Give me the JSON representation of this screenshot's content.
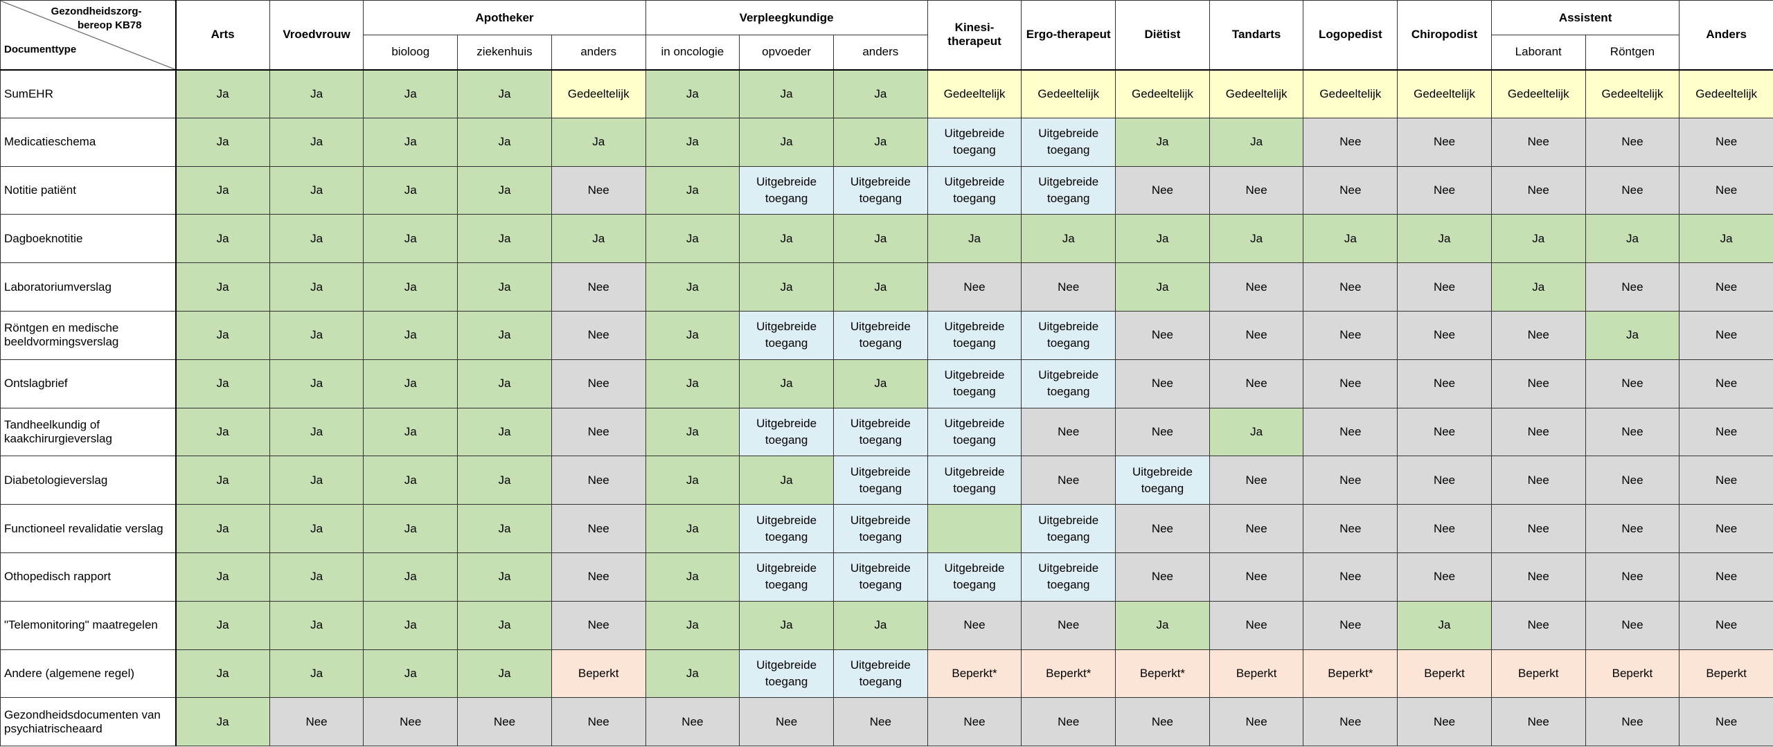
{
  "table": {
    "corner_top": "Gezondheidszorg-\nbereop KB78",
    "corner_bottom": "Documenttype",
    "columns": [
      {
        "label": "Arts"
      },
      {
        "label": "Vroedvrouw"
      },
      {
        "label": "Apotheker",
        "sub": [
          "bioloog",
          "ziekenhuis",
          "anders"
        ]
      },
      {
        "label": "Verpleegkundige",
        "sub": [
          "in oncologie",
          "opvoeder",
          "anders"
        ]
      },
      {
        "label": "Kinesi-\ntherapeut"
      },
      {
        "label": "Ergo-therapeut"
      },
      {
        "label": "Diëtist"
      },
      {
        "label": "Tandarts"
      },
      {
        "label": "Logopedist"
      },
      {
        "label": "Chiropodist"
      },
      {
        "label": "Assistent",
        "sub": [
          "Laborant",
          "Röntgen"
        ]
      },
      {
        "label": "Anders"
      }
    ],
    "fill_colors": {
      "Ja": "#c6e0b4",
      "Nee": "#d9d9d9",
      "Gedeeltelijk": "#ffffcc",
      "Uitgebreide toegang": "#ddeef5",
      "Beperkt": "#fce4d6",
      "Beperkt*": "#fce4d6"
    },
    "blank_fill": "#c6e0b4",
    "rows": [
      {
        "label": "SumEHR",
        "cells": [
          "Ja",
          "Ja",
          "Ja",
          "Ja",
          "Gedeeltelijk",
          "Ja",
          "Ja",
          "Ja",
          "Gedeeltelijk",
          "Gedeeltelijk",
          "Gedeeltelijk",
          "Gedeeltelijk",
          "Gedeeltelijk",
          "Gedeeltelijk",
          "Gedeeltelijk",
          "Gedeeltelijk",
          "Gedeeltelijk"
        ]
      },
      {
        "label": "Medicatieschema",
        "cells": [
          "Ja",
          "Ja",
          "Ja",
          "Ja",
          "Ja",
          "Ja",
          "Ja",
          "Ja",
          "Uitgebreide toegang",
          "Uitgebreide toegang",
          "Ja",
          "Ja",
          "Nee",
          "Nee",
          "Nee",
          "Nee",
          "Nee"
        ]
      },
      {
        "label": "Notitie patiënt",
        "cells": [
          "Ja",
          "Ja",
          "Ja",
          "Ja",
          "Nee",
          "Ja",
          "Uitgebreide toegang",
          "Uitgebreide toegang",
          "Uitgebreide toegang",
          "Uitgebreide toegang",
          "Nee",
          "Nee",
          "Nee",
          "Nee",
          "Nee",
          "Nee",
          "Nee"
        ]
      },
      {
        "label": "Dagboeknotitie",
        "cells": [
          "Ja",
          "Ja",
          "Ja",
          "Ja",
          "Ja",
          "Ja",
          "Ja",
          "Ja",
          "Ja",
          "Ja",
          "Ja",
          "Ja",
          "Ja",
          "Ja",
          "Ja",
          "Ja",
          "Ja"
        ]
      },
      {
        "label": "Laboratoriumverslag",
        "cells": [
          "Ja",
          "Ja",
          "Ja",
          "Ja",
          "Nee",
          "Ja",
          "Ja",
          "Ja",
          "Nee",
          "Nee",
          "Ja",
          "Nee",
          "Nee",
          "Nee",
          "Ja",
          "Nee",
          "Nee"
        ]
      },
      {
        "label": "Röntgen en medische beeldvormingsverslag",
        "cells": [
          "Ja",
          "Ja",
          "Ja",
          "Ja",
          "Nee",
          "Ja",
          "Uitgebreide toegang",
          "Uitgebreide toegang",
          "Uitgebreide toegang",
          "Uitgebreide toegang",
          "Nee",
          "Nee",
          "Nee",
          "Nee",
          "Nee",
          "Ja",
          "Nee"
        ]
      },
      {
        "label": "Ontslagbrief",
        "cells": [
          "Ja",
          "Ja",
          "Ja",
          "Ja",
          "Nee",
          "Ja",
          "Ja",
          "Ja",
          "Uitgebreide toegang",
          "Uitgebreide toegang",
          "Nee",
          "Nee",
          "Nee",
          "Nee",
          "Nee",
          "Nee",
          "Nee"
        ]
      },
      {
        "label": "Tandheelkundig of kaakchirurgieverslag",
        "cells": [
          "Ja",
          "Ja",
          "Ja",
          "Ja",
          "Nee",
          "Ja",
          "Uitgebreide toegang",
          "Uitgebreide toegang",
          "Uitgebreide toegang",
          "Nee",
          "Nee",
          "Ja",
          "Nee",
          "Nee",
          "Nee",
          "Nee",
          "Nee"
        ]
      },
      {
        "label": "Diabetologieverslag",
        "cells": [
          "Ja",
          "Ja",
          "Ja",
          "Ja",
          "Nee",
          "Ja",
          "Ja",
          "Uitgebreide toegang",
          "Uitgebreide toegang",
          "Nee",
          "Uitgebreide toegang",
          "Nee",
          "Nee",
          "Nee",
          "Nee",
          "Nee",
          "Nee"
        ]
      },
      {
        "label": "Functioneel revalidatie verslag",
        "cells": [
          "Ja",
          "Ja",
          "Ja",
          "Ja",
          "Nee",
          "Ja",
          "Uitgebreide toegang",
          "Uitgebreide toegang",
          null,
          "Uitgebreide toegang",
          "Nee",
          "Nee",
          "Nee",
          "Nee",
          "Nee",
          "Nee",
          "Nee"
        ]
      },
      {
        "label": "Othopedisch rapport",
        "cells": [
          "Ja",
          "Ja",
          "Ja",
          "Ja",
          "Nee",
          "Ja",
          "Uitgebreide toegang",
          "Uitgebreide toegang",
          "Uitgebreide toegang",
          "Uitgebreide toegang",
          "Nee",
          "Nee",
          "Nee",
          "Nee",
          "Nee",
          "Nee",
          "Nee"
        ]
      },
      {
        "label": "\"Telemonitoring\" maatregelen",
        "cells": [
          "Ja",
          "Ja",
          "Ja",
          "Ja",
          "Nee",
          "Ja",
          "Ja",
          "Ja",
          "Nee",
          "Nee",
          "Ja",
          "Nee",
          "Nee",
          "Ja",
          "Nee",
          "Nee",
          "Nee"
        ]
      },
      {
        "label": "Andere (algemene regel)",
        "cells": [
          "Ja",
          "Ja",
          "Ja",
          "Ja",
          "Beperkt",
          "Ja",
          "Uitgebreide toegang",
          "Uitgebreide toegang",
          "Beperkt*",
          "Beperkt*",
          "Beperkt*",
          "Beperkt",
          "Beperkt*",
          "Beperkt",
          "Beperkt",
          "Beperkt",
          "Beperkt"
        ]
      },
      {
        "label": "Gezondheidsdocumenten van psychiatrischeaard",
        "cells": [
          "Ja",
          "Nee",
          "Nee",
          "Nee",
          "Nee",
          "Nee",
          "Nee",
          "Nee",
          "Nee",
          "Nee",
          "Nee",
          "Nee",
          "Nee",
          "Nee",
          "Nee",
          "Nee",
          "Nee"
        ]
      }
    ]
  }
}
